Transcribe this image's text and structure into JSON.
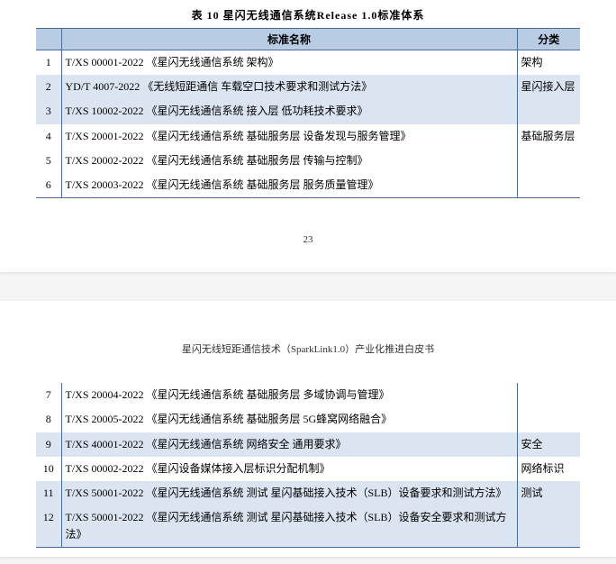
{
  "caption": "表 10  星闪无线通信系统Release 1.0标准体系",
  "doc_header": "星闪无线短距通信技术（SparkLink1.0）产业化推进白皮书",
  "page_num": "23",
  "headers": {
    "name": "标准名称",
    "cat": "分类"
  },
  "rows1": [
    {
      "idx": "1",
      "name": "T/XS 00001-2022 《星闪无线通信系统 架构》",
      "alt": false
    },
    {
      "idx": "2",
      "name": "YD/T 4007-2022  《无线短距通信 车载空口技术要求和测试方法》",
      "alt": true
    },
    {
      "idx": "3",
      "name": "T/XS 10002-2022 《星闪无线通信系统 接入层 低功耗技术要求》",
      "alt": true
    },
    {
      "idx": "4",
      "name": "T/XS 20001-2022 《星闪无线通信系统 基础服务层 设备发现与服务管理》",
      "alt": false
    },
    {
      "idx": "5",
      "name": "T/XS 20002-2022 《星闪无线通信系统 基础服务层 传输与控制》",
      "alt": false
    },
    {
      "idx": "6",
      "name": "T/XS 20003-2022 《星闪无线通信系统 基础服务层 服务质量管理》",
      "alt": false
    }
  ],
  "cat1": [
    {
      "text": "架构",
      "rowspan": 1,
      "alt": false
    },
    {
      "text": "星闪接入层",
      "rowspan": 2,
      "alt": true
    },
    {
      "text": "基础服务层",
      "rowspan": 3,
      "alt": false
    }
  ],
  "rows2": [
    {
      "idx": "7",
      "name": "T/XS 20004-2022 《星闪无线通信系统 基础服务层 多域协调与管理》",
      "alt": false
    },
    {
      "idx": "8",
      "name": "T/XS 20005-2022 《星闪无线通信系统 基础服务层  5G蜂窝网络融合》",
      "alt": false
    },
    {
      "idx": "9",
      "name": "T/XS 40001-2022 《星闪无线通信系统 网络安全 通用要求》",
      "alt": true
    },
    {
      "idx": "10",
      "name": "T/XS 00002-2022 《星闪设备媒体接入层标识分配机制》",
      "alt": false
    },
    {
      "idx": "11",
      "name": "T/XS 50001-2022 《星闪无线通信系统 测试 星闪基础接入技术（SLB）设备要求和测试方法》",
      "alt": true
    },
    {
      "idx": "12",
      "name": "T/XS 50001-2022 《星闪无线通信系统 测试 星闪基础接入技术（SLB）设备安全要求和测试方法》",
      "alt": true
    }
  ],
  "cat2": [
    {
      "text": "",
      "rowspan": 2,
      "alt": false
    },
    {
      "text": "安全",
      "rowspan": 1,
      "alt": true
    },
    {
      "text": "网络标识",
      "rowspan": 1,
      "alt": false
    },
    {
      "text": "测试",
      "rowspan": 2,
      "alt": true
    }
  ]
}
